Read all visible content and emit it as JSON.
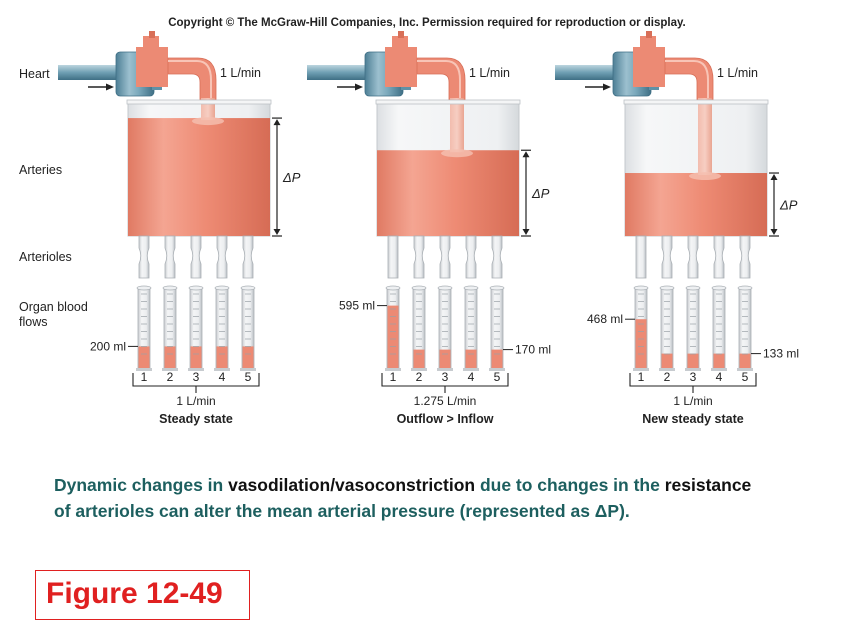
{
  "copyright": "Copyright © The McGraw-Hill Companies, Inc. Permission required for reproduction or display.",
  "row_labels": {
    "heart": "Heart",
    "arteries": "Arteries",
    "arterioles": "Arterioles",
    "organ_line1": "Organ blood",
    "organ_line2": "flows"
  },
  "panels": [
    {
      "inflow": "1 L/min",
      "delta_p": "ΔP",
      "tube_numbers": [
        "1",
        "2",
        "3",
        "4",
        "5"
      ],
      "outflow": "1 L/min",
      "state": "Steady state",
      "callout_left": "200 ml",
      "callout_right": "",
      "arteriole_state": "equal",
      "reservoir_level": 0.88,
      "cylinder_levels": [
        0.27,
        0.27,
        0.27,
        0.27,
        0.27
      ]
    },
    {
      "inflow": "1 L/min",
      "delta_p": "ΔP",
      "tube_numbers": [
        "1",
        "2",
        "3",
        "4",
        "5"
      ],
      "outflow": "1.275 L/min",
      "state": "Outflow > Inflow",
      "callout_left": "595 ml",
      "callout_right": "170 ml",
      "arteriole_state": "first-dilated",
      "reservoir_level": 0.64,
      "cylinder_levels": [
        0.78,
        0.23,
        0.23,
        0.23,
        0.23
      ]
    },
    {
      "inflow": "1 L/min",
      "delta_p": "ΔP",
      "tube_numbers": [
        "1",
        "2",
        "3",
        "4",
        "5"
      ],
      "outflow": "1 L/min",
      "state": "New steady state",
      "callout_left": "468 ml",
      "callout_right": "133 ml",
      "arteriole_state": "first-dilated",
      "reservoir_level": 0.47,
      "cylinder_levels": [
        0.61,
        0.18,
        0.18,
        0.18,
        0.18
      ]
    }
  ],
  "caption": {
    "p1": "Dynamic changes in ",
    "p2": "vasodilation/vasoconstriction",
    "p3": " due to changes in the ",
    "p4": "resistance",
    "p5": " of arterioles can alter the mean arterial pressure (represented as ",
    "p6": "ΔP",
    "p7": ")."
  },
  "figure_label": "Figure 12-49",
  "colors": {
    "blood": "#ec8a74",
    "blood_dark": "#d86f58",
    "reservoir_bg": "#e9ebed",
    "pump_blue": "#6f9fb3",
    "pump_blue_dark": "#4d7f95",
    "glass": "#d9dcdf",
    "caption_teal": "#1d5f5f",
    "figure_red": "#e02020"
  }
}
